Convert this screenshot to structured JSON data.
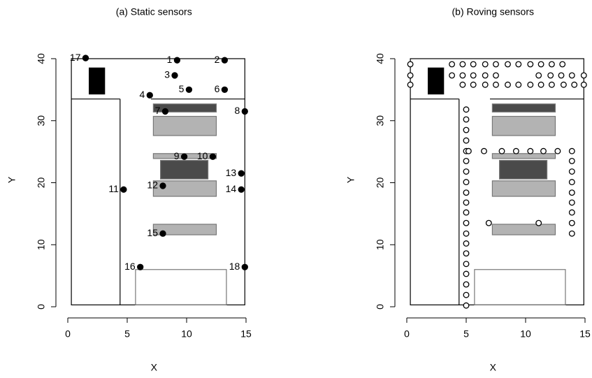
{
  "chart_data": [
    {
      "type": "scatter",
      "title": "(a) Static sensors",
      "x_label": "X",
      "y_label": "Y",
      "xlim": [
        -1,
        15.5
      ],
      "ylim": [
        -1.8,
        42.7
      ],
      "xticks": [
        0,
        5,
        10,
        15
      ],
      "yticks": [
        0,
        10,
        20,
        30,
        40
      ],
      "filled": true,
      "color": "#000000",
      "series": [
        {
          "labels": [
            "1",
            "2",
            "3",
            "4",
            "5",
            "6",
            "7",
            "8",
            "9",
            "10",
            "11",
            "12",
            "13",
            "14",
            "15",
            "16",
            "17",
            "18"
          ],
          "x": [
            9.2,
            13.2,
            9.0,
            6.9,
            10.2,
            13.2,
            8.2,
            14.9,
            9.8,
            12.2,
            4.7,
            8.0,
            14.6,
            14.6,
            8.0,
            6.1,
            1.5,
            14.9
          ],
          "y": [
            39.75,
            39.75,
            37.3,
            34.1,
            35.0,
            35.0,
            31.5,
            31.5,
            24.2,
            24.2,
            18.9,
            19.5,
            21.5,
            18.9,
            11.8,
            6.4,
            40.1,
            6.4
          ]
        }
      ]
    },
    {
      "type": "scatter",
      "title": "(b) Roving sensors",
      "x_label": "X",
      "y_label": "Y",
      "xlim": [
        -1,
        15.5
      ],
      "ylim": [
        -1.8,
        42.7
      ],
      "xticks": [
        0,
        5,
        10,
        15
      ],
      "yticks": [
        0,
        10,
        20,
        30,
        40
      ],
      "filled": false,
      "color": "#000000",
      "series": [
        {
          "x": [
            0.3,
            3.8,
            4.7,
            5.6,
            6.6,
            7.5,
            8.5,
            9.4,
            10.4,
            11.3,
            12.2,
            13.1,
            0.3,
            3.8,
            4.7,
            5.6,
            6.6,
            7.5,
            11.1,
            12.1,
            13.0,
            13.9,
            14.9,
            0.3,
            4.7,
            5.6,
            6.6,
            7.5,
            8.5,
            9.4,
            10.4,
            11.3,
            12.2,
            13.2,
            14.1,
            14.9,
            5.0,
            5.0,
            5.0,
            5.0,
            5.0,
            5.0,
            5.0,
            5.0,
            5.0,
            5.0,
            5.0,
            5.0,
            5.0,
            5.0,
            5.0,
            5.0,
            5.0,
            5.0,
            5.0,
            5.0,
            5.2,
            6.5,
            8.0,
            9.2,
            10.4,
            11.5,
            12.7,
            13.9,
            13.9,
            13.9,
            13.9,
            13.9,
            13.9,
            13.9,
            13.9,
            13.9,
            6.9,
            11.1
          ],
          "y": [
            39.1,
            39.1,
            39.1,
            39.1,
            39.1,
            39.1,
            39.1,
            39.1,
            39.1,
            39.1,
            39.1,
            39.1,
            37.3,
            37.3,
            37.3,
            37.3,
            37.3,
            37.3,
            37.3,
            37.3,
            37.3,
            37.3,
            37.3,
            35.8,
            35.8,
            35.8,
            35.8,
            35.8,
            35.8,
            35.8,
            35.8,
            35.8,
            35.8,
            35.8,
            35.8,
            35.8,
            31.8,
            30.2,
            28.5,
            26.8,
            25.1,
            23.5,
            21.8,
            20.1,
            18.4,
            16.8,
            15.2,
            13.5,
            11.8,
            10.2,
            8.6,
            6.9,
            5.3,
            3.6,
            1.9,
            0.2,
            25.1,
            25.1,
            25.1,
            25.1,
            25.1,
            25.1,
            25.1,
            25.1,
            23.5,
            21.8,
            20.1,
            18.4,
            16.8,
            15.2,
            13.5,
            11.8,
            13.5,
            13.5
          ]
        }
      ]
    }
  ]
}
